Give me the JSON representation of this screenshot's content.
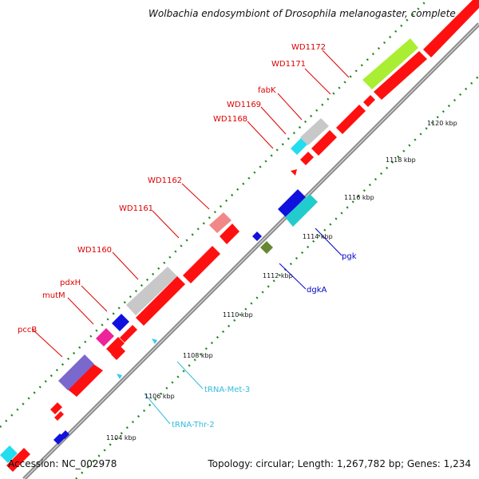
{
  "title": "Wolbachia endosymbiont of Drosophila melanogaster, complete ...",
  "footer": {
    "accession": "Accession: NC_002978",
    "summary": "Topology: circular; Length: 1,267,782 bp; Genes: 1,234"
  },
  "colors": {
    "cds": "#ff0000",
    "trna": "#33ccee",
    "backbone": "#999999",
    "ticks": "#228822",
    "labelTop": "#dd0000",
    "labelBottom": "#0000cc",
    "labelTrna": "#33bbdd"
  },
  "scale_labels": [
    "1104 kbp",
    "1106 kbp",
    "1108 kbp",
    "1110 kbp",
    "1112 kbp",
    "1114 kbp",
    "1116 kbp",
    "1118 kbp",
    "1120 kbp"
  ],
  "gene_labels_top": [
    "pccB",
    "mutM",
    "pdxH",
    "WD1160",
    "WD1161",
    "WD1162",
    "WD1168",
    "WD1169",
    "fabK",
    "WD1171",
    "WD1172"
  ],
  "gene_labels_bottom": [
    "dgkA",
    "pgk"
  ],
  "trna_labels": [
    "tRNA-Thr-2",
    "tRNA-Met-3"
  ]
}
